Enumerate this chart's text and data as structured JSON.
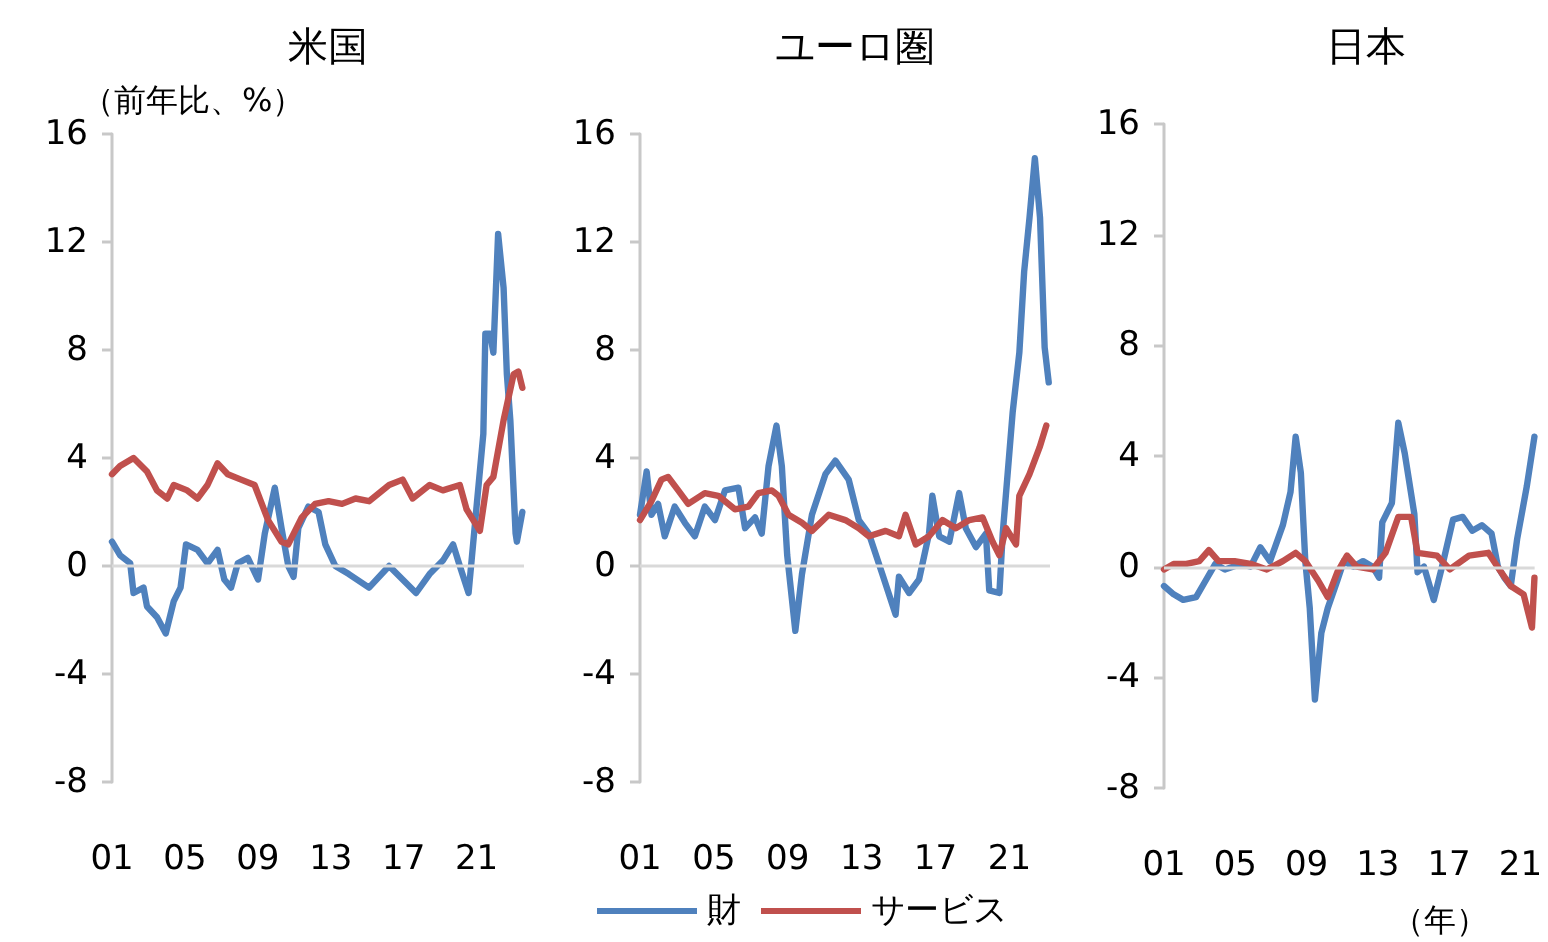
{
  "chart_data": [
    {
      "type": "line",
      "title": "米国",
      "ylabel": "（前年比、%）",
      "xlim": [
        2001,
        2023.6
      ],
      "ylim": [
        -8,
        16
      ],
      "yticks": [
        -8,
        -4,
        0,
        4,
        8,
        12,
        16
      ],
      "xticks": [
        {
          "value": 2001,
          "label": "01"
        },
        {
          "value": 2005,
          "label": "05"
        },
        {
          "value": 2009,
          "label": "09"
        },
        {
          "value": 2013,
          "label": "13"
        },
        {
          "value": 2017,
          "label": "17"
        },
        {
          "value": 2021,
          "label": "21"
        }
      ],
      "ref_lines": [
        {
          "axis": "y",
          "value": 0,
          "color": "#d9d9d9"
        }
      ],
      "grid": false,
      "legend": false,
      "marker": "none",
      "line_style": "solid",
      "series": [
        {
          "color": "#4f81bd",
          "x": [
            2001.0,
            2001.44,
            2002.0,
            2002.18,
            2002.73,
            2002.92,
            2003.47,
            2003.95,
            2004.39,
            2004.76,
            2005.06,
            2005.69,
            2006.24,
            2006.79,
            2007.16,
            2007.53,
            2007.9,
            2008.45,
            2009.01,
            2009.38,
            2009.93,
            2010.3,
            2010.67,
            2010.96,
            2011.22,
            2011.77,
            2012.33,
            2012.7,
            2013.25,
            2013.99,
            2015.1,
            2016.2,
            2016.94,
            2017.68,
            2018.42,
            2019.15,
            2019.71,
            2020.08,
            2020.56,
            2020.82,
            2021.37,
            2021.48,
            2021.74,
            2021.92,
            2022.18,
            2022.48,
            2022.66,
            2022.85,
            2023.14,
            2023.21,
            2023.51
          ],
          "values": [
            0.9,
            0.4,
            0.1,
            -1.0,
            -0.8,
            -1.5,
            -1.9,
            -2.5,
            -1.3,
            -0.8,
            0.8,
            0.6,
            0.1,
            0.6,
            -0.5,
            -0.8,
            0.1,
            0.3,
            -0.5,
            1.2,
            2.9,
            1.4,
            0,
            -0.4,
            1.4,
            2.2,
            2.0,
            0.8,
            0,
            -0.3,
            -0.8,
            0,
            -0.5,
            -1.0,
            -0.3,
            0.2,
            0.8,
            0,
            -1.0,
            0.9,
            4.9,
            8.6,
            8.6,
            7.9,
            12.3,
            10.3,
            7.1,
            5.4,
            1.2,
            0.9,
            2.0
          ]
        },
        {
          "color": "#c0504d",
          "x": [
            2001.0,
            2001.44,
            2002.18,
            2002.92,
            2003.47,
            2004.03,
            2004.39,
            2005.13,
            2005.69,
            2006.24,
            2006.79,
            2007.35,
            2008.08,
            2008.82,
            2009.56,
            2010.3,
            2010.67,
            2011.41,
            2012.14,
            2012.88,
            2013.62,
            2014.36,
            2015.1,
            2016.2,
            2016.94,
            2017.49,
            2018.42,
            2019.15,
            2020.08,
            2020.45,
            2021.18,
            2021.55,
            2021.92,
            2022.48,
            2023.03,
            2023.29,
            2023.51
          ],
          "values": [
            3.4,
            3.7,
            4.0,
            3.5,
            2.8,
            2.5,
            3.0,
            2.8,
            2.5,
            3.0,
            3.8,
            3.4,
            3.2,
            3.0,
            1.7,
            0.9,
            0.8,
            1.8,
            2.3,
            2.4,
            2.3,
            2.5,
            2.4,
            3.0,
            3.2,
            2.5,
            3.0,
            2.8,
            3.0,
            2.1,
            1.3,
            3.0,
            3.3,
            5.4,
            7.1,
            7.2,
            6.6
          ]
        }
      ]
    },
    {
      "type": "line",
      "title": "ユーロ圏",
      "xlim": [
        2001,
        2023.2
      ],
      "ylim": [
        -8,
        16
      ],
      "yticks": [
        -8,
        -4,
        0,
        4,
        8,
        12,
        16
      ],
      "xticks": [
        {
          "value": 2001,
          "label": "01"
        },
        {
          "value": 2005,
          "label": "05"
        },
        {
          "value": 2009,
          "label": "09"
        },
        {
          "value": 2013,
          "label": "13"
        },
        {
          "value": 2017,
          "label": "17"
        },
        {
          "value": 2021,
          "label": "21"
        }
      ],
      "ref_lines": [
        {
          "axis": "y",
          "value": 0,
          "color": "#d9d9d9"
        }
      ],
      "grid": false,
      "legend": "bottom",
      "marker": "none",
      "line_style": "solid",
      "series": [
        {
          "name": "財",
          "color": "#4f81bd",
          "x": [
            2001.0,
            2001.36,
            2001.62,
            2001.98,
            2002.34,
            2002.88,
            2003.43,
            2003.97,
            2004.51,
            2005.06,
            2005.6,
            2006.33,
            2006.69,
            2007.23,
            2007.59,
            2007.96,
            2008.39,
            2008.68,
            2008.97,
            2009.41,
            2009.77,
            2010.31,
            2011.04,
            2011.58,
            2012.3,
            2012.85,
            2013.39,
            2014.12,
            2014.84,
            2015.02,
            2015.57,
            2016.11,
            2016.65,
            2016.83,
            2017.2,
            2017.75,
            2018.28,
            2018.64,
            2019.19,
            2019.73,
            2019.91,
            2020.46,
            2020.64,
            2021.18,
            2021.54,
            2021.8,
            2022.09,
            2022.38,
            2022.66,
            2022.91,
            2023.13
          ],
          "values": [
            1.9,
            3.5,
            1.9,
            2.3,
            1.1,
            2.2,
            1.6,
            1.1,
            2.2,
            1.7,
            2.8,
            2.9,
            1.4,
            1.8,
            1.2,
            3.7,
            5.2,
            3.7,
            0.4,
            -2.4,
            -0.3,
            1.9,
            3.4,
            3.9,
            3.2,
            1.7,
            1.2,
            -0.3,
            -1.8,
            -0.4,
            -1.0,
            -0.5,
            1.2,
            2.6,
            1.1,
            0.9,
            2.7,
            1.4,
            0.7,
            1.2,
            -0.9,
            -1.0,
            1.2,
            5.7,
            7.9,
            10.9,
            12.9,
            15.1,
            12.9,
            8.1,
            6.8
          ]
        },
        {
          "name": "サービス",
          "color": "#c0504d",
          "x": [
            2001.0,
            2001.62,
            2002.16,
            2002.52,
            2003.07,
            2003.61,
            2004.51,
            2005.24,
            2006.14,
            2006.87,
            2007.41,
            2008.14,
            2008.5,
            2009.04,
            2009.77,
            2010.31,
            2011.22,
            2012.12,
            2012.85,
            2013.39,
            2014.3,
            2015.02,
            2015.38,
            2015.93,
            2016.65,
            2017.38,
            2018.1,
            2018.83,
            2019.55,
            2020.09,
            2020.46,
            2020.82,
            2021.36,
            2021.54,
            2022.09,
            2022.64,
            2023.0
          ],
          "values": [
            1.7,
            2.4,
            3.2,
            3.3,
            2.8,
            2.3,
            2.7,
            2.6,
            2.1,
            2.2,
            2.7,
            2.8,
            2.6,
            1.9,
            1.6,
            1.3,
            1.9,
            1.7,
            1.4,
            1.1,
            1.3,
            1.1,
            1.9,
            0.8,
            1.1,
            1.7,
            1.4,
            1.7,
            1.8,
            0.9,
            0.4,
            1.4,
            0.8,
            2.6,
            3.4,
            4.4,
            5.2
          ]
        }
      ]
    },
    {
      "type": "line",
      "title": "日本",
      "xlabel": "（年）",
      "xlim": [
        2001,
        2021.8
      ],
      "ylim": [
        -8,
        16
      ],
      "yticks": [
        -8,
        -4,
        0,
        4,
        8,
        12,
        16
      ],
      "xticks": [
        {
          "value": 2001,
          "label": "01"
        },
        {
          "value": 2005,
          "label": "05"
        },
        {
          "value": 2009,
          "label": "09"
        },
        {
          "value": 2013,
          "label": "13"
        },
        {
          "value": 2017,
          "label": "17"
        },
        {
          "value": 2021,
          "label": "21"
        }
      ],
      "ref_lines": [
        {
          "axis": "y",
          "value": 0,
          "color": "#d9d9d9"
        }
      ],
      "grid": false,
      "legend": false,
      "marker": "none",
      "line_style": "solid",
      "series": [
        {
          "color": "#4f81bd",
          "x": [
            2001.0,
            2001.54,
            2002.08,
            2002.8,
            2003.34,
            2003.88,
            2004.42,
            2005.32,
            2005.86,
            2006.41,
            2006.95,
            2007.67,
            2008.1,
            2008.39,
            2008.68,
            2008.93,
            2009.18,
            2009.47,
            2009.83,
            2010.19,
            2010.73,
            2011.09,
            2011.63,
            2012.17,
            2012.71,
            2013.07,
            2013.25,
            2013.79,
            2014.15,
            2014.51,
            2015.05,
            2015.23,
            2015.59,
            2016.14,
            2016.68,
            2017.22,
            2017.76,
            2018.3,
            2018.84,
            2019.38,
            2019.74,
            2020.1,
            2020.46,
            2020.82,
            2021.36,
            2021.79
          ],
          "values": [
            -0.7,
            -1.0,
            -1.2,
            -1.1,
            -0.5,
            0.1,
            -0.1,
            0.1,
            0,
            0.7,
            0.2,
            1.5,
            2.7,
            4.7,
            3.4,
            0.2,
            -1.5,
            -4.8,
            -2.4,
            -1.5,
            -0.5,
            0.2,
            0,
            0.2,
            0,
            -0.4,
            1.6,
            2.3,
            5.2,
            4.1,
            1.9,
            -0.2,
            0,
            -1.2,
            0.2,
            1.7,
            1.8,
            1.3,
            1.5,
            1.2,
            0,
            -0.4,
            -0.7,
            1.0,
            2.9,
            4.7
          ]
        },
        {
          "color": "#c0504d",
          "x": [
            2001.0,
            2001.54,
            2002.26,
            2002.98,
            2003.52,
            2004.06,
            2004.96,
            2005.86,
            2006.77,
            2007.67,
            2008.39,
            2008.93,
            2009.65,
            2010.19,
            2010.73,
            2011.27,
            2011.81,
            2012.71,
            2013.43,
            2014.15,
            2014.87,
            2015.23,
            2016.32,
            2017.04,
            2018.12,
            2019.2,
            2019.92,
            2020.46,
            2021.18,
            2021.65,
            2021.79
          ],
          "values": [
            -0.1,
            0.1,
            0.1,
            0.2,
            0.6,
            0.2,
            0.2,
            0.1,
            -0.1,
            0.2,
            0.5,
            0.2,
            -0.5,
            -1.1,
            -0.2,
            0.4,
            0,
            -0.1,
            0.5,
            1.8,
            1.8,
            0.5,
            0.4,
            -0.1,
            0.4,
            0.5,
            -0.2,
            -0.7,
            -1.0,
            -2.2,
            -0.4
          ]
        }
      ]
    }
  ]
}
